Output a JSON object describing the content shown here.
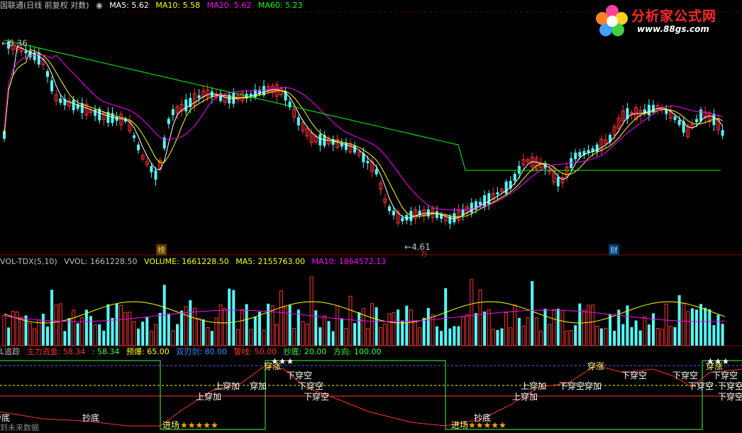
{
  "main_header": {
    "title": "国联通(日线 前复权 对数)",
    "ma5": "MA5: 5.62",
    "ma10": "MA10: 5.58",
    "ma20": "MA20: 5.62",
    "ma60": "MA60: 5.23"
  },
  "price_labels": {
    "high": "6.36",
    "low": "4.61"
  },
  "markers": {
    "bang": "榜",
    "cai": "财",
    "wan": "万"
  },
  "vol_header": {
    "name": "VOL-TDX(5,10)",
    "vvol": "VVOL: 1661228.50",
    "volume": "VOLUME: 1661228.50",
    "ma5": "MA5: 2155763.00",
    "ma10": "MA10: 1864572.13"
  },
  "ind_header": {
    "name": "L追踪",
    "zhuli": "主力资金: 58.34",
    "val": ": 58.34",
    "yubao": "预爆: 65.00",
    "shuangren": "双刃剑: 80.00",
    "shaixian": "警线: 50.00",
    "chaodi": "抄底: 20.00",
    "fangxiang": "方向: 100.00"
  },
  "signals": [
    {
      "text": "抄底",
      "cls": "white"
    },
    {
      "text": "抄底",
      "cls": "white"
    },
    {
      "text": "进场",
      "cls": "yellow"
    },
    {
      "text": "★★★★★",
      "cls": "orange"
    },
    {
      "text": "上穿加",
      "cls": "white"
    },
    {
      "text": "上穿加",
      "cls": "white"
    },
    {
      "text": "穿加",
      "cls": "white"
    },
    {
      "text": "穿涨",
      "cls": "yellow"
    },
    {
      "text": "下穿空",
      "cls": "white"
    },
    {
      "text": "下穿空",
      "cls": "white"
    },
    {
      "text": "下穿空",
      "cls": "white"
    },
    {
      "text": "抄底",
      "cls": "white"
    },
    {
      "text": "进场",
      "cls": "yellow"
    },
    {
      "text": "★★★★★",
      "cls": "orange"
    },
    {
      "text": "上穿加",
      "cls": "white"
    },
    {
      "text": "上穿加",
      "cls": "white"
    },
    {
      "text": "下穿空穿加",
      "cls": "white"
    },
    {
      "text": "穿涨",
      "cls": "yellow"
    },
    {
      "text": "下穿空",
      "cls": "white"
    },
    {
      "text": "下穿空",
      "cls": "white"
    },
    {
      "text": "下穿空",
      "cls": "white"
    },
    {
      "text": "穿涨",
      "cls": "yellow"
    },
    {
      "text": "下穿空",
      "cls": "white"
    },
    {
      "text": "下穿空",
      "cls": "white"
    },
    {
      "text": "下穿空",
      "cls": "white"
    },
    {
      "text": "★★★",
      "cls": "white"
    },
    {
      "text": "★★★",
      "cls": "white"
    }
  ],
  "footer": "到未来数据",
  "logo": {
    "cn": "分析家公式网",
    "url": "www.88gs.com"
  },
  "colors": {
    "up": "#ff3232",
    "down": "#54fcfc",
    "ma5": "#ffffff",
    "ma10": "#ffff00",
    "ma20": "#ff00ff",
    "ma60": "#00ff00",
    "divider": "#800000"
  }
}
